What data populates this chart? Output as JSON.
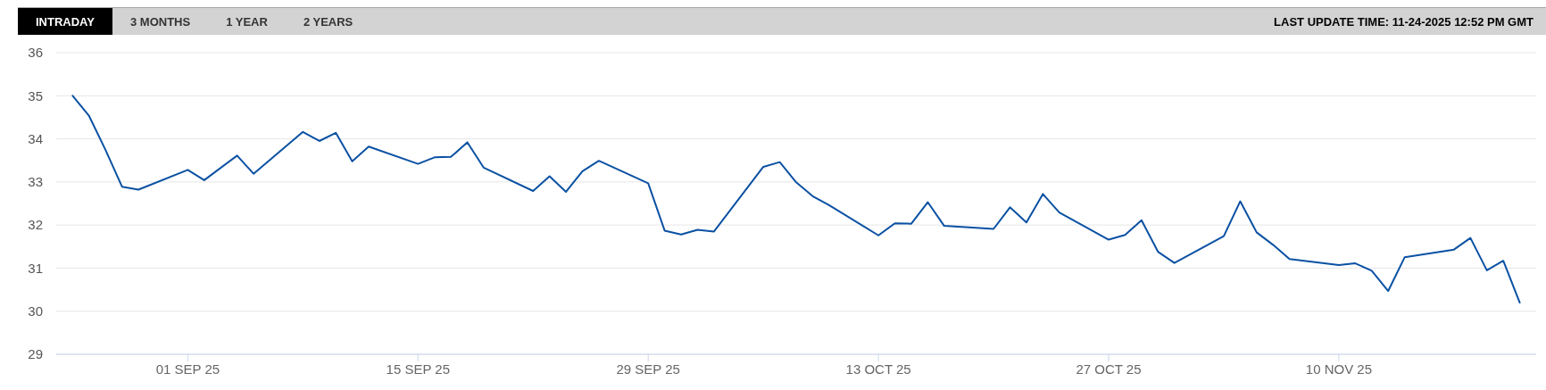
{
  "chart_data": {
    "type": "line",
    "subtitle": "LAST UPDATE TIME: 11-24-2025 12:52 PM GMT",
    "annotations": [
      "INTRADAY",
      "3 MONTHS",
      "1 YEAR",
      "2 YEARS"
    ],
    "x": [
      "2025-08-25",
      "2025-08-26",
      "2025-08-27",
      "2025-08-28",
      "2025-08-29",
      "2025-09-01",
      "2025-09-02",
      "2025-09-04",
      "2025-09-05",
      "2025-09-08",
      "2025-09-09",
      "2025-09-10",
      "2025-09-11",
      "2025-09-12",
      "2025-09-15",
      "2025-09-16",
      "2025-09-17",
      "2025-09-18",
      "2025-09-19",
      "2025-09-22",
      "2025-09-23",
      "2025-09-24",
      "2025-09-25",
      "2025-09-26",
      "2025-09-29",
      "2025-09-30",
      "2025-10-01",
      "2025-10-02",
      "2025-10-03",
      "2025-10-06",
      "2025-10-07",
      "2025-10-08",
      "2025-10-09",
      "2025-10-10",
      "2025-10-13",
      "2025-10-14",
      "2025-10-15",
      "2025-10-16",
      "2025-10-17",
      "2025-10-20",
      "2025-10-21",
      "2025-10-22",
      "2025-10-23",
      "2025-10-24",
      "2025-10-27",
      "2025-10-28",
      "2025-10-29",
      "2025-10-30",
      "2025-10-31",
      "2025-11-03",
      "2025-11-04",
      "2025-11-05",
      "2025-11-06",
      "2025-11-07",
      "2025-11-10",
      "2025-11-11",
      "2025-11-12",
      "2025-11-13",
      "2025-11-14",
      "2025-11-17",
      "2025-11-18",
      "2025-11-19",
      "2025-11-20",
      "2025-11-21"
    ],
    "series": [
      {
        "color": "#0b51a3",
        "values": [
          35.0,
          34.53,
          33.74,
          32.89,
          32.82,
          33.28,
          33.04,
          33.61,
          33.19,
          34.16,
          33.95,
          34.14,
          33.48,
          33.82,
          33.42,
          33.57,
          33.58,
          33.92,
          33.33,
          32.79,
          33.13,
          32.77,
          33.25,
          33.49,
          32.97,
          31.87,
          31.78,
          31.89,
          31.85,
          33.35,
          33.46,
          32.99,
          32.67,
          32.46,
          31.76,
          32.04,
          32.03,
          32.53,
          31.98,
          31.91,
          32.41,
          32.06,
          32.72,
          32.29,
          31.66,
          31.77,
          32.11,
          31.38,
          31.12,
          31.74,
          32.55,
          31.83,
          31.54,
          31.21,
          31.07,
          31.11,
          30.94,
          30.47,
          31.25,
          31.43,
          31.7,
          30.95,
          31.17,
          30.2
        ]
      }
    ],
    "xlim": [
      "2025-08-24",
      "2025-11-22"
    ],
    "xticks": [
      {
        "value": "2025-09-01",
        "label": "01 SEP 25"
      },
      {
        "value": "2025-09-15",
        "label": "15 SEP 25"
      },
      {
        "value": "2025-09-29",
        "label": "29 SEP 25"
      },
      {
        "value": "2025-10-13",
        "label": "13 OCT 25"
      },
      {
        "value": "2025-10-27",
        "label": "27 OCT 25"
      },
      {
        "value": "2025-11-10",
        "label": "10 NOV 25"
      }
    ],
    "ylim": [
      29,
      36
    ],
    "yticks": [
      29,
      30,
      31,
      32,
      33,
      34,
      35,
      36
    ],
    "grid": "y",
    "marker": "none",
    "line_style": "solid"
  }
}
